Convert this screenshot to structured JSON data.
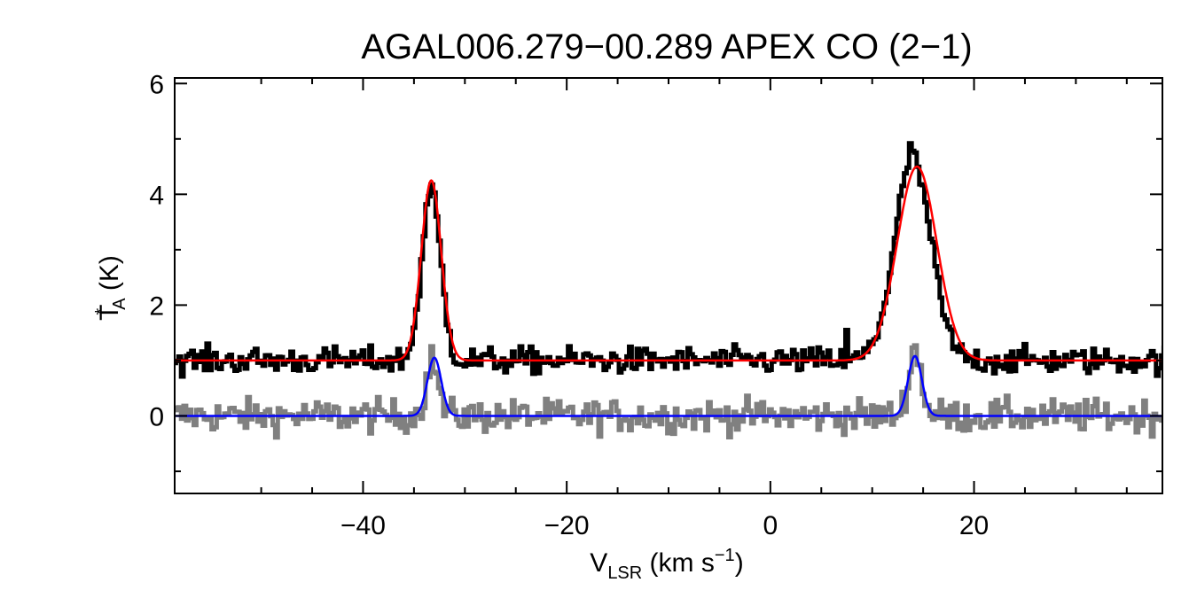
{
  "chart_data": {
    "type": "line",
    "title": "AGAL006.279−00.289  APEX CO (2−1)",
    "xlabel": {
      "main": "V",
      "sub": "LSR",
      "rest": " (km s",
      "sup": "−1",
      "close": ")"
    },
    "ylabel": {
      "main": "T",
      "sup": "*",
      "sub": "A",
      "rest": " (K)"
    },
    "xlim": [
      -58.5,
      38.5
    ],
    "ylim": [
      -1.4,
      6.1
    ],
    "xticks": [
      -40,
      -20,
      0,
      20
    ],
    "xtick_labels": [
      "−40",
      "−20",
      "0",
      "20"
    ],
    "yticks": [
      0,
      2,
      4,
      6
    ],
    "ytick_labels": [
      "0",
      "2",
      "4",
      "6"
    ],
    "grid": false,
    "series": [
      {
        "role": "observed spectrum (offset +1 K)",
        "style": "histogram",
        "color": "#000000",
        "baseline": 1.0,
        "noise_rms": 0.12,
        "components": [
          {
            "center": -33.3,
            "amplitude": 3.05,
            "fwhm": 2.2
          },
          {
            "center": 14.0,
            "amplitude": 3.6,
            "fwhm": 4.2
          }
        ],
        "features": [
          {
            "x": 7.5,
            "y": 1.55
          },
          {
            "x": 13.7,
            "y": 4.92
          }
        ]
      },
      {
        "role": "Gaussian fit to observed spectrum",
        "style": "smooth",
        "color": "#ff0000",
        "baseline": 1.0,
        "components": [
          {
            "center": -33.3,
            "amplitude": 3.25,
            "fwhm": 2.3
          },
          {
            "center": 14.4,
            "amplitude": 3.5,
            "fwhm": 4.6
          }
        ]
      },
      {
        "role": "residual spectrum",
        "style": "histogram",
        "color": "#808080",
        "baseline": 0.0,
        "noise_rms": 0.15,
        "components": [
          {
            "center": -33.2,
            "amplitude": 1.0,
            "fwhm": 1.4
          },
          {
            "center": 14.2,
            "amplitude": 1.2,
            "fwhm": 1.5
          }
        ]
      },
      {
        "role": "Gaussian fit to residual spectrum",
        "style": "smooth",
        "color": "#0000ff",
        "baseline": 0.0,
        "components": [
          {
            "center": -33.0,
            "amplitude": 1.05,
            "fwhm": 1.6
          },
          {
            "center": 14.2,
            "amplitude": 1.08,
            "fwhm": 1.6
          }
        ]
      }
    ]
  }
}
